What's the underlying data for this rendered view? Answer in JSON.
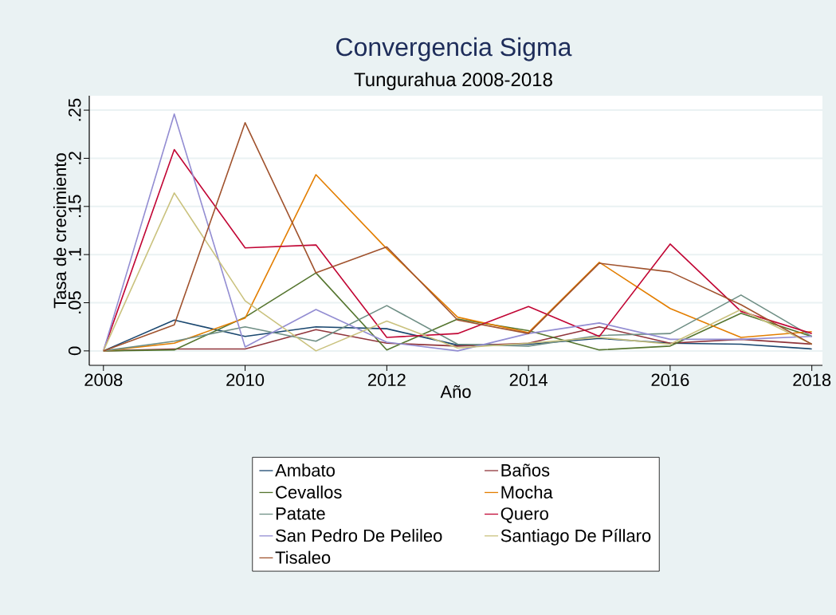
{
  "chart_data": {
    "type": "line",
    "title": "Convergencia Sigma",
    "subtitle": "Tungurahua 2008-2018",
    "xlabel": "Año",
    "ylabel": "Tasa de crecimiento",
    "x": [
      2008,
      2009,
      2010,
      2011,
      2012,
      2013,
      2014,
      2015,
      2016,
      2017,
      2018
    ],
    "series": [
      {
        "name": "Ambato",
        "color": "#1a476f",
        "values": [
          0,
          0.032,
          0.015,
          0.025,
          0.023,
          0.006,
          0.007,
          0.013,
          0.008,
          0.007,
          0.002
        ]
      },
      {
        "name": "Baños",
        "color": "#90353b",
        "values": [
          0,
          0.002,
          0.002,
          0.022,
          0.008,
          0.005,
          0.008,
          0.025,
          0.008,
          0.012,
          0.007
        ]
      },
      {
        "name": "Cevallos",
        "color": "#55752f",
        "values": [
          0,
          0.001,
          0.035,
          0.081,
          0.001,
          0.033,
          0.021,
          0.001,
          0.005,
          0.039,
          0.015
        ]
      },
      {
        "name": "Mocha",
        "color": "#e37e00",
        "values": [
          0,
          0.008,
          0.034,
          0.183,
          0.106,
          0.035,
          0.019,
          0.092,
          0.044,
          0.014,
          0.02
        ]
      },
      {
        "name": "Patate",
        "color": "#6e8e84",
        "values": [
          0,
          0.01,
          0.025,
          0.01,
          0.047,
          0.007,
          0.005,
          0.016,
          0.018,
          0.058,
          0.015
        ]
      },
      {
        "name": "Quero",
        "color": "#c10534",
        "values": [
          0,
          0.209,
          0.107,
          0.11,
          0.014,
          0.018,
          0.046,
          0.015,
          0.111,
          0.041,
          0.018
        ]
      },
      {
        "name": "San Pedro De Pelileo",
        "color": "#938dd2",
        "values": [
          0,
          0.246,
          0.004,
          0.043,
          0.009,
          0,
          0.018,
          0.029,
          0.012,
          0.012,
          0.015
        ]
      },
      {
        "name": "Santiago De Píllaro",
        "color": "#cac27e",
        "values": [
          0,
          0.164,
          0.052,
          0,
          0.031,
          0.003,
          0.008,
          0.014,
          0.007,
          0.043,
          0.007
        ]
      },
      {
        "name": "Tisaleo",
        "color": "#a0522d",
        "values": [
          0,
          0.027,
          0.237,
          0.081,
          0.108,
          0.032,
          0.018,
          0.091,
          0.082,
          0.048,
          0.007
        ]
      }
    ],
    "xlim": [
      2007.8,
      2018.15
    ],
    "ylim": [
      -0.015,
      0.265
    ],
    "xticks": [
      2008,
      2010,
      2012,
      2014,
      2016,
      2018
    ],
    "yticks": [
      0,
      {
        "value": 0.05,
        "label": ".05"
      },
      {
        "value": 0.1,
        "label": ".1"
      },
      {
        "value": 0.15,
        "label": ".15"
      },
      {
        "value": 0.2,
        "label": ".2"
      },
      {
        "value": 0.25,
        "label": ".25"
      }
    ],
    "grid": "y",
    "legend": "bottom"
  }
}
